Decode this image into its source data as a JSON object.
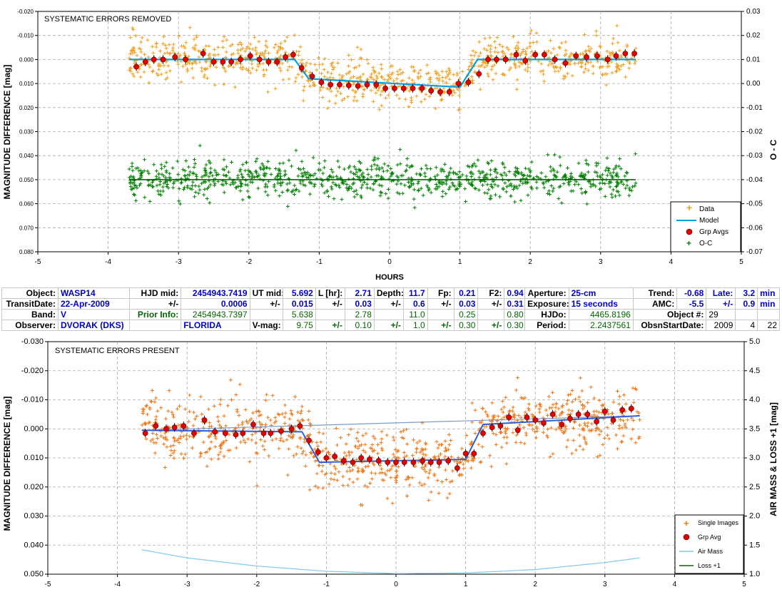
{
  "chart_data": [
    {
      "type": "scatter",
      "id": "top",
      "title": "SYSTEMATIC ERRORS REMOVED",
      "xlabel": "HOURS",
      "ylabel": "MAGNITUDE DIFFERENCE [mag]",
      "y2label": "O - C",
      "xlim": [
        -5,
        5
      ],
      "ylim": [
        -0.02,
        0.08
      ],
      "y2lim": [
        -0.07,
        0.03
      ],
      "xticks": [
        "-5",
        "-4",
        "-3",
        "-2",
        "-1",
        "0",
        "1",
        "2",
        "3",
        "4",
        "5"
      ],
      "yticks": [
        "-0.020",
        "-0.010",
        "0.000",
        "0.010",
        "0.020",
        "0.030",
        "0.040",
        "0.050",
        "0.060",
        "0.070",
        "0.080"
      ],
      "y2ticks": [
        "-0.07",
        "-0.06",
        "-0.05",
        "-0.04",
        "-0.03",
        "-0.02",
        "-0.01",
        "0.00",
        "0.01",
        "0.02",
        "0.03"
      ],
      "grid": true,
      "legend_position": "bottom-right",
      "legend": [
        "Data",
        "Model",
        "Grp Avgs",
        "O-C"
      ],
      "model": {
        "x": [
          -3.7,
          -1.35,
          -1.15,
          1.0,
          1.25,
          3.5
        ],
        "y": [
          0.0,
          0.0,
          0.008,
          0.0115,
          0.0,
          0.0
        ]
      },
      "grp_avgs": {
        "x": [
          -3.6,
          -3.47,
          -3.35,
          -3.22,
          -3.05,
          -2.9,
          -2.65,
          -2.5,
          -2.37,
          -2.25,
          -2.12,
          -1.98,
          -1.85,
          -1.72,
          -1.6,
          -1.48,
          -1.37,
          -1.25,
          -1.1,
          -0.97,
          -0.84,
          -0.71,
          -0.58,
          -0.45,
          -0.32,
          -0.19,
          -0.06,
          0.07,
          0.2,
          0.33,
          0.46,
          0.59,
          0.72,
          0.85,
          0.98,
          1.12,
          1.27,
          1.4,
          1.52,
          1.65,
          1.8,
          1.93,
          2.07,
          2.2,
          2.35,
          2.5,
          2.65,
          2.8,
          2.95,
          3.1,
          3.22,
          3.35,
          3.48
        ],
        "y": [
          0.003,
          0.001,
          0.0,
          0.0,
          -0.001,
          0.0,
          -0.0025,
          0.001,
          0.001,
          0.001,
          0.0,
          -0.0015,
          0.0,
          0.001,
          0.001,
          -0.001,
          -0.002,
          0.0035,
          0.007,
          0.0095,
          0.0105,
          0.0105,
          0.0108,
          0.011,
          0.0105,
          0.0105,
          0.012,
          0.012,
          0.012,
          0.012,
          0.012,
          0.013,
          0.0135,
          0.0135,
          0.01,
          0.0095,
          0.006,
          0.0,
          0.0,
          0.0,
          -0.002,
          0.0005,
          -0.002,
          -0.002,
          0.0,
          0.0015,
          -0.0015,
          -0.001,
          -0.0015,
          0.0,
          -0.0015,
          -0.0025,
          -0.0025
        ]
      },
      "oc_level": 0.05
    },
    {
      "type": "scatter",
      "id": "bottom",
      "title": "SYSTEMATIC ERRORS PRESENT",
      "xlabel": "",
      "ylabel": "MAGNITUDE DIFFERENCE [mag]",
      "y2label": "AIR MASS & LOSS +1 [mag]",
      "xlim": [
        -5,
        5
      ],
      "ylim": [
        -0.03,
        0.05
      ],
      "y2lim": [
        1.0,
        5.0
      ],
      "xticks": [
        "-5",
        "-4",
        "-3",
        "-2",
        "-1",
        "0",
        "1",
        "2",
        "3",
        "4",
        "5"
      ],
      "yticks": [
        "-0.030",
        "-0.020",
        "-0.010",
        "0.000",
        "0.010",
        "0.020",
        "0.030",
        "0.040",
        "0.050"
      ],
      "y2ticks": [
        "1.0",
        "1.5",
        "2.0",
        "2.5",
        "3.0",
        "3.5",
        "4.0",
        "4.5",
        "5.0"
      ],
      "grid": true,
      "legend_position": "bottom-right",
      "legend": [
        "Single Images",
        "Grp Avg",
        "Air Mass",
        "Loss +1"
      ],
      "model": {
        "x": [
          -3.65,
          -1.35,
          -1.1,
          1.0,
          1.25,
          3.5
        ],
        "y": [
          0.0005,
          0.001,
          0.0115,
          0.0105,
          -0.0015,
          -0.0045
        ]
      },
      "baseline": {
        "x": [
          -3.65,
          3.5
        ],
        "y": [
          0.0005,
          -0.0045
        ]
      },
      "airmass": {
        "x": [
          -3.65,
          -3.0,
          -2.0,
          -1.0,
          0.0,
          1.0,
          2.0,
          3.0,
          3.5
        ],
        "y": [
          1.42,
          1.28,
          1.14,
          1.05,
          1.01,
          1.02,
          1.08,
          1.2,
          1.28
        ]
      },
      "grp_avgs": {
        "x": [
          -3.6,
          -3.45,
          -3.3,
          -3.18,
          -3.05,
          -2.9,
          -2.75,
          -2.6,
          -2.45,
          -2.3,
          -2.2,
          -2.05,
          -1.9,
          -1.8,
          -1.65,
          -1.5,
          -1.38,
          -1.25,
          -1.12,
          -1.0,
          -0.88,
          -0.75,
          -0.62,
          -0.5,
          -0.38,
          -0.25,
          -0.12,
          0.0,
          0.12,
          0.25,
          0.38,
          0.5,
          0.62,
          0.75,
          0.88,
          1.0,
          1.12,
          1.25,
          1.38,
          1.5,
          1.62,
          1.75,
          1.88,
          2.0,
          2.12,
          2.25,
          2.38,
          2.5,
          2.62,
          2.75,
          2.88,
          3.0,
          3.12,
          3.25,
          3.38
        ],
        "y": [
          0.0015,
          -0.001,
          0.0,
          -0.0005,
          -0.001,
          0.0015,
          -0.003,
          0.001,
          0.0015,
          0.002,
          0.0015,
          -0.0015,
          0.0015,
          0.0015,
          0.0008,
          0.0,
          -0.001,
          0.004,
          0.008,
          0.01,
          0.0095,
          0.011,
          0.0115,
          0.01,
          0.0105,
          0.011,
          0.0115,
          0.0115,
          0.0115,
          0.0115,
          0.011,
          0.0115,
          0.0115,
          0.011,
          0.0135,
          0.0085,
          0.0085,
          0.0015,
          -0.0005,
          -0.001,
          -0.004,
          0.0005,
          -0.004,
          -0.003,
          -0.002,
          -0.005,
          -0.0015,
          -0.0035,
          -0.005,
          -0.005,
          -0.0025,
          -0.006,
          -0.003,
          -0.0065,
          -0.007
        ]
      }
    }
  ],
  "info": {
    "r1": {
      "object_lbl": "Object:",
      "object": "WASP14",
      "hjdmid_lbl": "HJD mid:",
      "hjdmid": "2454943.7419",
      "utmid_lbl": "UT mid:",
      "utmid": "5.692",
      "l_lbl": "L [hr]:",
      "l": "2.71",
      "depth_lbl": "Depth:",
      "depth": "11.7",
      "fp_lbl": "Fp:",
      "fp": "0.21",
      "f2_lbl": "F2:",
      "f2": "0.94",
      "aperture_lbl": "Aperture:",
      "aperture": "25-cm",
      "trend_lbl": "Trend:",
      "trend": "-0.68",
      "late_lbl": "Late:",
      "late": "3.2",
      "late_unit": "min"
    },
    "r2": {
      "transit_lbl": "TransitDate:",
      "transit": "22-Apr-2009",
      "pm1": "+/-",
      "hjd_err": "0.0006",
      "pm2": "+/-",
      "ut_err": "0.015",
      "pm3": "+/-",
      "l_err": "0.03",
      "pm4": "+/-",
      "depth_err": "0.6",
      "pm5": "+/-",
      "fp_err": "0.03",
      "pm6": "+/-",
      "f2_err": "0.31",
      "exposure_lbl": "Exposure:",
      "exposure": "15 seconds",
      "amc_lbl": "AMC:",
      "amc": "-5.5",
      "pm7": "+/-",
      "late_err": "0.9",
      "late_err_unit": "min"
    },
    "r3": {
      "band_lbl": "Band:",
      "band": "V",
      "prior_lbl": "Prior Info:",
      "prior_hjd": "2454943.7397",
      "prior_ut": "5.638",
      "prior_l": "2.78",
      "prior_depth": "11.0",
      "prior_fp": "0.25",
      "prior_f2": "0.80",
      "hjdo_lbl": "HJDo:",
      "hjdo": "4465.8196",
      "objnum_lbl": "Object #:",
      "objnum": "29"
    },
    "r4": {
      "observer_lbl": "Observer:",
      "observer": "DVORAK (DKS)",
      "location": "FLORIDA",
      "vmag_lbl": "V-mag:",
      "vmag": "9.75",
      "pm1": "+/-",
      "e1": "0.10",
      "pm2": "+/-",
      "e2": "1.0",
      "pm3": "+/-",
      "e3": "0.30",
      "pm4": "+/-",
      "e4": "0.30",
      "period_lbl": "Period:",
      "period": "2.2437561",
      "obsn_lbl": "ObsnStartDate:",
      "year": "2009",
      "month": "4",
      "day": "22"
    }
  },
  "colors": {
    "data": "#f0a020",
    "data2": "#f07818",
    "model": "#00a0e0",
    "model2": "#3060d8",
    "grp": "#e00000",
    "oc": "#008000",
    "airmass": "#80c8f0",
    "blue_text": "#0000cc",
    "green_text": "#006600"
  }
}
